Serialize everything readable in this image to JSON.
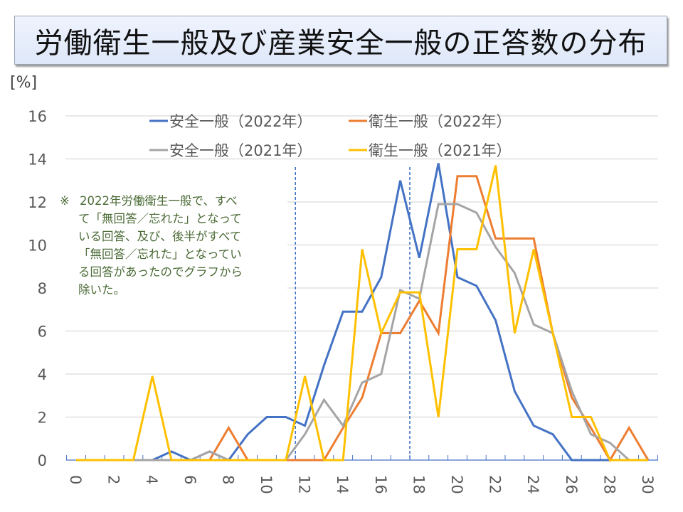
{
  "title": "労働衛生一般及び産業安全一般の正答数の分布",
  "unit_label": "[%]",
  "note": {
    "mark": "※",
    "lines": [
      "2022年労働衛生一般で、すべ",
      "て「無回答／忘れた」となって",
      "いる回答、及び、後半がすべて",
      "「無回答／忘れた」となってい",
      "る回答があったのでグラフから",
      "除いた。"
    ]
  },
  "chart_data": {
    "type": "line",
    "title": "労働衛生一般及び産業安全一般の正答数の分布",
    "xlabel": "",
    "ylabel": "[%]",
    "ylim": [
      0,
      16
    ],
    "xlim": [
      0,
      30
    ],
    "y_ticks": [
      0,
      2,
      4,
      6,
      8,
      10,
      12,
      14,
      16
    ],
    "x_ticks": [
      0,
      2,
      4,
      6,
      8,
      10,
      12,
      14,
      16,
      18,
      20,
      22,
      24,
      26,
      28,
      30
    ],
    "grid": "horizontal",
    "legend_position": "top-center",
    "reference_lines_x": [
      11.5,
      17.5
    ],
    "x": [
      0,
      1,
      2,
      3,
      4,
      5,
      6,
      7,
      8,
      9,
      10,
      11,
      12,
      13,
      14,
      15,
      16,
      17,
      18,
      19,
      20,
      21,
      22,
      23,
      24,
      25,
      26,
      27,
      28,
      29,
      30
    ],
    "series": [
      {
        "name": "安全一般（2022年）",
        "color": "#4472c4",
        "values": [
          0,
          0,
          0,
          0,
          0,
          0.4,
          0,
          0.4,
          0,
          1.2,
          2.0,
          2.0,
          1.6,
          4.4,
          6.9,
          6.9,
          8.5,
          13.0,
          9.4,
          13.8,
          8.5,
          8.1,
          6.5,
          3.2,
          1.6,
          1.2,
          0,
          0,
          0,
          0,
          0
        ]
      },
      {
        "name": "衛生一般（2022年）",
        "color": "#ed7d31",
        "values": [
          0,
          0,
          0,
          0,
          0,
          0,
          0,
          0,
          1.5,
          0,
          0,
          0,
          0,
          0,
          1.5,
          2.9,
          5.9,
          5.9,
          7.4,
          5.9,
          13.2,
          13.2,
          10.3,
          10.3,
          10.3,
          5.9,
          2.9,
          1.5,
          0,
          1.5,
          0
        ]
      },
      {
        "name": "安全一般（2021年）",
        "color": "#a5a5a5",
        "values": [
          0,
          0,
          0,
          0,
          0,
          0,
          0,
          0.4,
          0,
          0,
          0,
          0,
          1.2,
          2.8,
          1.6,
          3.6,
          4.0,
          7.9,
          7.5,
          11.9,
          11.9,
          11.5,
          9.9,
          8.7,
          6.3,
          5.9,
          3.2,
          1.2,
          0.8,
          0,
          null
        ]
      },
      {
        "name": "衛生一般（2021年）",
        "color": "#ffc000",
        "values": [
          0,
          0,
          0,
          0,
          3.9,
          0,
          0,
          0,
          0,
          0,
          0,
          0,
          3.9,
          0,
          0,
          9.8,
          5.9,
          7.8,
          7.8,
          2.0,
          9.8,
          9.8,
          13.7,
          5.9,
          9.8,
          5.9,
          2.0,
          2.0,
          0,
          0,
          0
        ]
      }
    ]
  }
}
